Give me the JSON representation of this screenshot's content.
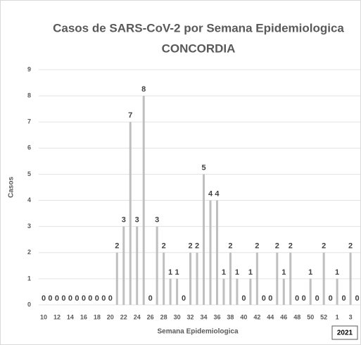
{
  "chart_data": {
    "type": "bar",
    "title": "Casos de SARS-CoV-2 por Semana Epidemiologica",
    "subtitle": "CONCORDIA",
    "x_label": "Semana Epidemiologica",
    "y_label": "Casos",
    "annotation": "2021",
    "categories": [
      "10",
      null,
      "12",
      null,
      "14",
      null,
      "16",
      null,
      "18",
      null,
      "20",
      null,
      "22",
      null,
      "24",
      null,
      "26",
      null,
      "28",
      null,
      "30",
      null,
      "32",
      null,
      "34",
      null,
      "36",
      null,
      "38",
      null,
      "40",
      null,
      "42",
      null,
      "44",
      null,
      "46",
      null,
      "48",
      null,
      "50",
      null,
      "52",
      null,
      "1",
      null,
      "3",
      null
    ],
    "values": [
      0,
      0,
      0,
      0,
      0,
      0,
      0,
      0,
      0,
      0,
      0,
      2,
      3,
      7,
      3,
      8,
      0,
      3,
      2,
      1,
      1,
      0,
      2,
      2,
      5,
      4,
      4,
      1,
      2,
      1,
      0,
      1,
      2,
      0,
      0,
      2,
      1,
      2,
      0,
      0,
      1,
      0,
      2,
      0,
      1,
      0,
      2,
      0
    ],
    "color": "#bfbfbf",
    "ylim": [
      0,
      9
    ],
    "yticks": [
      0,
      1,
      2,
      3,
      4,
      5,
      6,
      7,
      8,
      9
    ],
    "grid": true
  }
}
